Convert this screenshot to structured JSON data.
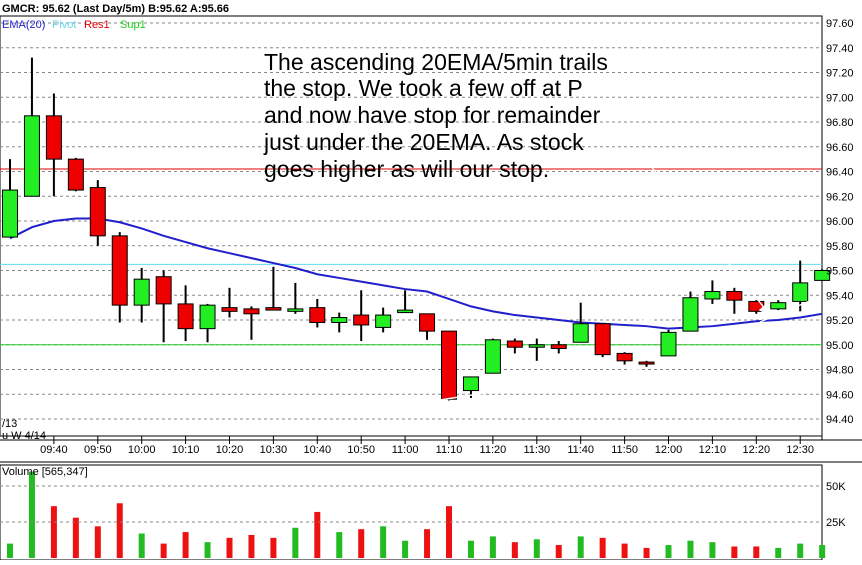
{
  "header": {
    "symbol_line": "GMCR: 95.62 (Last Day/5m)  B:95.62 A:95.66",
    "legend": [
      {
        "label": "EMA(20)",
        "color": "#1f1fcc"
      },
      {
        "label": "Pivot",
        "color": "#66d9e8"
      },
      {
        "label": "Res1",
        "color": "#e00000"
      },
      {
        "label": "Sup1",
        "color": "#22cc22"
      }
    ]
  },
  "annotation": {
    "lines": [
      "The ascending 20EMA/5min trails",
      "the stop.   We took a few off at P",
      "and now have stop for remainder",
      "just under the 20EMA.  As stock",
      "goes higher as will our stop."
    ]
  },
  "date_label": "u W  4/14",
  "date_label_top": "/13",
  "volume_panel": {
    "title": "Volume  [565,347]",
    "y_ticks": [
      "50K",
      "25K"
    ]
  },
  "chart_data": {
    "type": "candlestick",
    "title": "GMCR: 95.62 (Last Day/5m)  B:95.62 A:95.66",
    "ylim": [
      94.3,
      97.7
    ],
    "y_ticks": [
      "97.60",
      "97.40",
      "97.20",
      "97.00",
      "96.80",
      "96.60",
      "96.40",
      "96.20",
      "96.00",
      "95.80",
      "95.60",
      "95.40",
      "95.20",
      "95.00",
      "94.80",
      "94.60",
      "94.40"
    ],
    "x_tick_labels": [
      "09:40",
      "09:50",
      "10:00",
      "10:10",
      "10:20",
      "10:30",
      "10:40",
      "10:50",
      "11:00",
      "11:10",
      "11:20",
      "11:30",
      "11:40",
      "11:50",
      "12:00",
      "12:10",
      "12:20",
      "12:30"
    ],
    "reference_lines": [
      {
        "name": "Res1",
        "value": 96.42,
        "color": "#e00000"
      },
      {
        "name": "Pivot",
        "value": 95.65,
        "color": "#66d9e8"
      },
      {
        "name": "Sup1",
        "value": 95.0,
        "color": "#22cc22"
      }
    ],
    "candles": [
      {
        "o": 95.87,
        "h": 96.5,
        "l": 95.87,
        "c": 96.25,
        "v": 10000
      },
      {
        "o": 96.2,
        "h": 97.32,
        "l": 96.2,
        "c": 96.85,
        "v": 60000
      },
      {
        "o": 96.85,
        "h": 97.03,
        "l": 96.2,
        "c": 96.5,
        "v": 36000
      },
      {
        "o": 96.5,
        "h": 96.51,
        "l": 96.24,
        "c": 96.25,
        "v": 28000
      },
      {
        "o": 96.27,
        "h": 96.33,
        "l": 95.8,
        "c": 95.88,
        "v": 22000
      },
      {
        "o": 95.88,
        "h": 95.91,
        "l": 95.18,
        "c": 95.32,
        "v": 38000
      },
      {
        "o": 95.32,
        "h": 95.62,
        "l": 95.18,
        "c": 95.53,
        "v": 17000
      },
      {
        "o": 95.55,
        "h": 95.6,
        "l": 95.02,
        "c": 95.33,
        "v": 10000
      },
      {
        "o": 95.33,
        "h": 95.48,
        "l": 95.03,
        "c": 95.13,
        "v": 18000
      },
      {
        "o": 95.13,
        "h": 95.33,
        "l": 95.02,
        "c": 95.32,
        "v": 11000
      },
      {
        "o": 95.3,
        "h": 95.46,
        "l": 95.22,
        "c": 95.27,
        "v": 14000
      },
      {
        "o": 95.29,
        "h": 95.31,
        "l": 95.04,
        "c": 95.25,
        "v": 16000
      },
      {
        "o": 95.3,
        "h": 95.63,
        "l": 95.29,
        "c": 95.28,
        "v": 14000
      },
      {
        "o": 95.27,
        "h": 95.5,
        "l": 95.25,
        "c": 95.29,
        "v": 21000
      },
      {
        "o": 95.3,
        "h": 95.37,
        "l": 95.14,
        "c": 95.18,
        "v": 32000
      },
      {
        "o": 95.18,
        "h": 95.26,
        "l": 95.1,
        "c": 95.22,
        "v": 18000
      },
      {
        "o": 95.24,
        "h": 95.44,
        "l": 95.03,
        "c": 95.16,
        "v": 20000
      },
      {
        "o": 95.14,
        "h": 95.3,
        "l": 95.1,
        "c": 95.24,
        "v": 22000
      },
      {
        "o": 95.26,
        "h": 95.44,
        "l": 95.26,
        "c": 95.28,
        "v": 12000
      },
      {
        "o": 95.25,
        "h": 95.25,
        "l": 95.04,
        "c": 95.11,
        "v": 20000
      },
      {
        "o": 95.11,
        "h": 95.11,
        "l": 94.55,
        "c": 94.56,
        "v": 36000
      },
      {
        "o": 94.63,
        "h": 94.74,
        "l": 94.57,
        "c": 94.74,
        "v": 12000
      },
      {
        "o": 94.77,
        "h": 95.05,
        "l": 94.77,
        "c": 95.04,
        "v": 15000
      },
      {
        "o": 95.03,
        "h": 95.05,
        "l": 94.93,
        "c": 94.98,
        "v": 11000
      },
      {
        "o": 94.98,
        "h": 95.05,
        "l": 94.87,
        "c": 95.0,
        "v": 13000
      },
      {
        "o": 95.0,
        "h": 95.03,
        "l": 94.93,
        "c": 94.97,
        "v": 9000
      },
      {
        "o": 95.02,
        "h": 95.34,
        "l": 95.02,
        "c": 95.17,
        "v": 15000
      },
      {
        "o": 95.17,
        "h": 95.17,
        "l": 94.9,
        "c": 94.92,
        "v": 14000
      },
      {
        "o": 94.93,
        "h": 94.94,
        "l": 94.84,
        "c": 94.87,
        "v": 10000
      },
      {
        "o": 94.86,
        "h": 94.87,
        "l": 94.82,
        "c": 94.85,
        "v": 7000
      },
      {
        "o": 94.91,
        "h": 95.12,
        "l": 94.91,
        "c": 95.1,
        "v": 9000
      },
      {
        "o": 95.11,
        "h": 95.43,
        "l": 95.11,
        "c": 95.38,
        "v": 12000
      },
      {
        "o": 95.37,
        "h": 95.52,
        "l": 95.33,
        "c": 95.43,
        "v": 11000
      },
      {
        "o": 95.43,
        "h": 95.46,
        "l": 95.25,
        "c": 95.36,
        "v": 8000
      },
      {
        "o": 95.35,
        "h": 95.36,
        "l": 95.25,
        "c": 95.27,
        "v": 8000
      },
      {
        "o": 95.29,
        "h": 95.36,
        "l": 95.28,
        "c": 95.34,
        "v": 7000
      },
      {
        "o": 95.35,
        "h": 95.68,
        "l": 95.27,
        "c": 95.5,
        "v": 10000
      },
      {
        "o": 95.52,
        "h": 95.61,
        "l": 95.52,
        "c": 95.6,
        "v": 9000
      }
    ],
    "ema20": [
      95.86,
      95.95,
      96.0,
      96.02,
      96.02,
      95.99,
      95.94,
      95.88,
      95.83,
      95.78,
      95.74,
      95.7,
      95.66,
      95.62,
      95.57,
      95.54,
      95.51,
      95.48,
      95.45,
      95.43,
      95.37,
      95.31,
      95.27,
      95.24,
      95.22,
      95.2,
      95.18,
      95.17,
      95.16,
      95.15,
      95.13,
      95.14,
      95.15,
      95.17,
      95.19,
      95.2,
      95.22,
      95.25
    ]
  }
}
